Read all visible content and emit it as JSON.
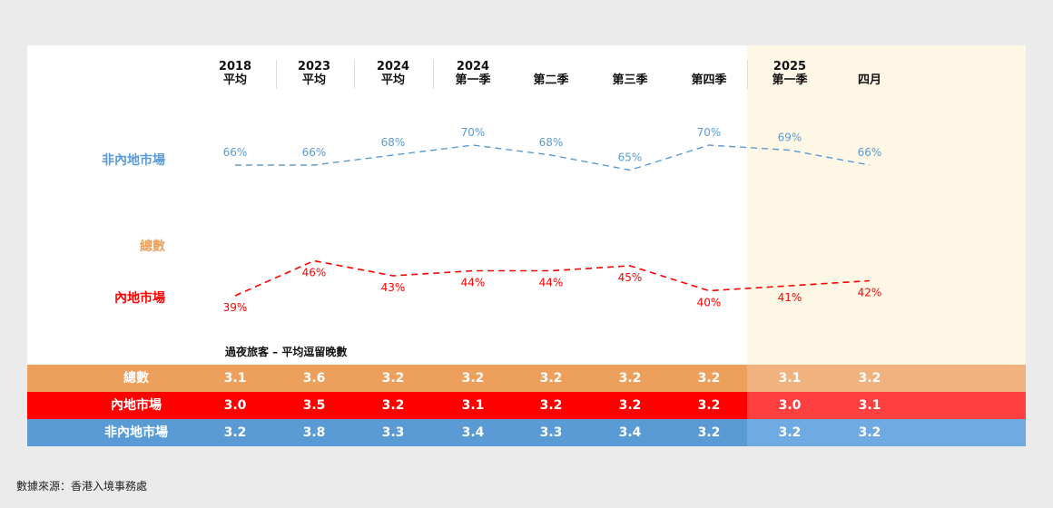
{
  "chart_data": {
    "type": "line",
    "title": "過夜旅客 – 平均逗留晚數",
    "categories": [
      [
        "2018",
        "平均"
      ],
      [
        "2023",
        "平均"
      ],
      [
        "2024",
        "平均"
      ],
      [
        "2024",
        "第一季"
      ],
      [
        "",
        "第二季"
      ],
      [
        "",
        "第三季"
      ],
      [
        "",
        "第四季"
      ],
      [
        "2025",
        "第一季"
      ],
      [
        "",
        "四月"
      ]
    ],
    "series": [
      {
        "name": "非內地市場",
        "color": "#5b9bd5",
        "values": [
          66,
          66,
          68,
          70,
          68,
          65,
          70,
          69,
          66
        ],
        "labels": [
          "66%",
          "66%",
          "68%",
          "70%",
          "68%",
          "65%",
          "70%",
          "69%",
          "66%"
        ]
      },
      {
        "name": "內地市場",
        "color": "#ff0000",
        "values": [
          39,
          46,
          43,
          44,
          44,
          45,
          40,
          41,
          42
        ],
        "labels": [
          "39%",
          "46%",
          "43%",
          "44%",
          "44%",
          "45%",
          "40%",
          "41%",
          "42%"
        ]
      }
    ],
    "legend_total": {
      "name": "總數",
      "color": "#eca05c"
    },
    "highlight_from_index": 7
  },
  "table": {
    "subtitle": "過夜旅客 – 平均逗留晚數",
    "rows": [
      {
        "label": "總數",
        "color": "#eca05c",
        "hl": "#f0b380",
        "values": [
          "3.1",
          "3.6",
          "3.2",
          "3.2",
          "3.2",
          "3.2",
          "3.2",
          "3.1",
          "3.2"
        ]
      },
      {
        "label": "內地市場",
        "color": "#ff0000",
        "hl": "#ff4040",
        "values": [
          "3.0",
          "3.5",
          "3.2",
          "3.1",
          "3.2",
          "3.2",
          "3.2",
          "3.0",
          "3.1"
        ]
      },
      {
        "label": "非內地市場",
        "color": "#5b9bd5",
        "hl": "#6fabe2",
        "values": [
          "3.2",
          "3.8",
          "3.3",
          "3.4",
          "3.3",
          "3.4",
          "3.2",
          "3.2",
          "3.2"
        ]
      }
    ]
  },
  "source": "數據來源：香港入境事務處"
}
